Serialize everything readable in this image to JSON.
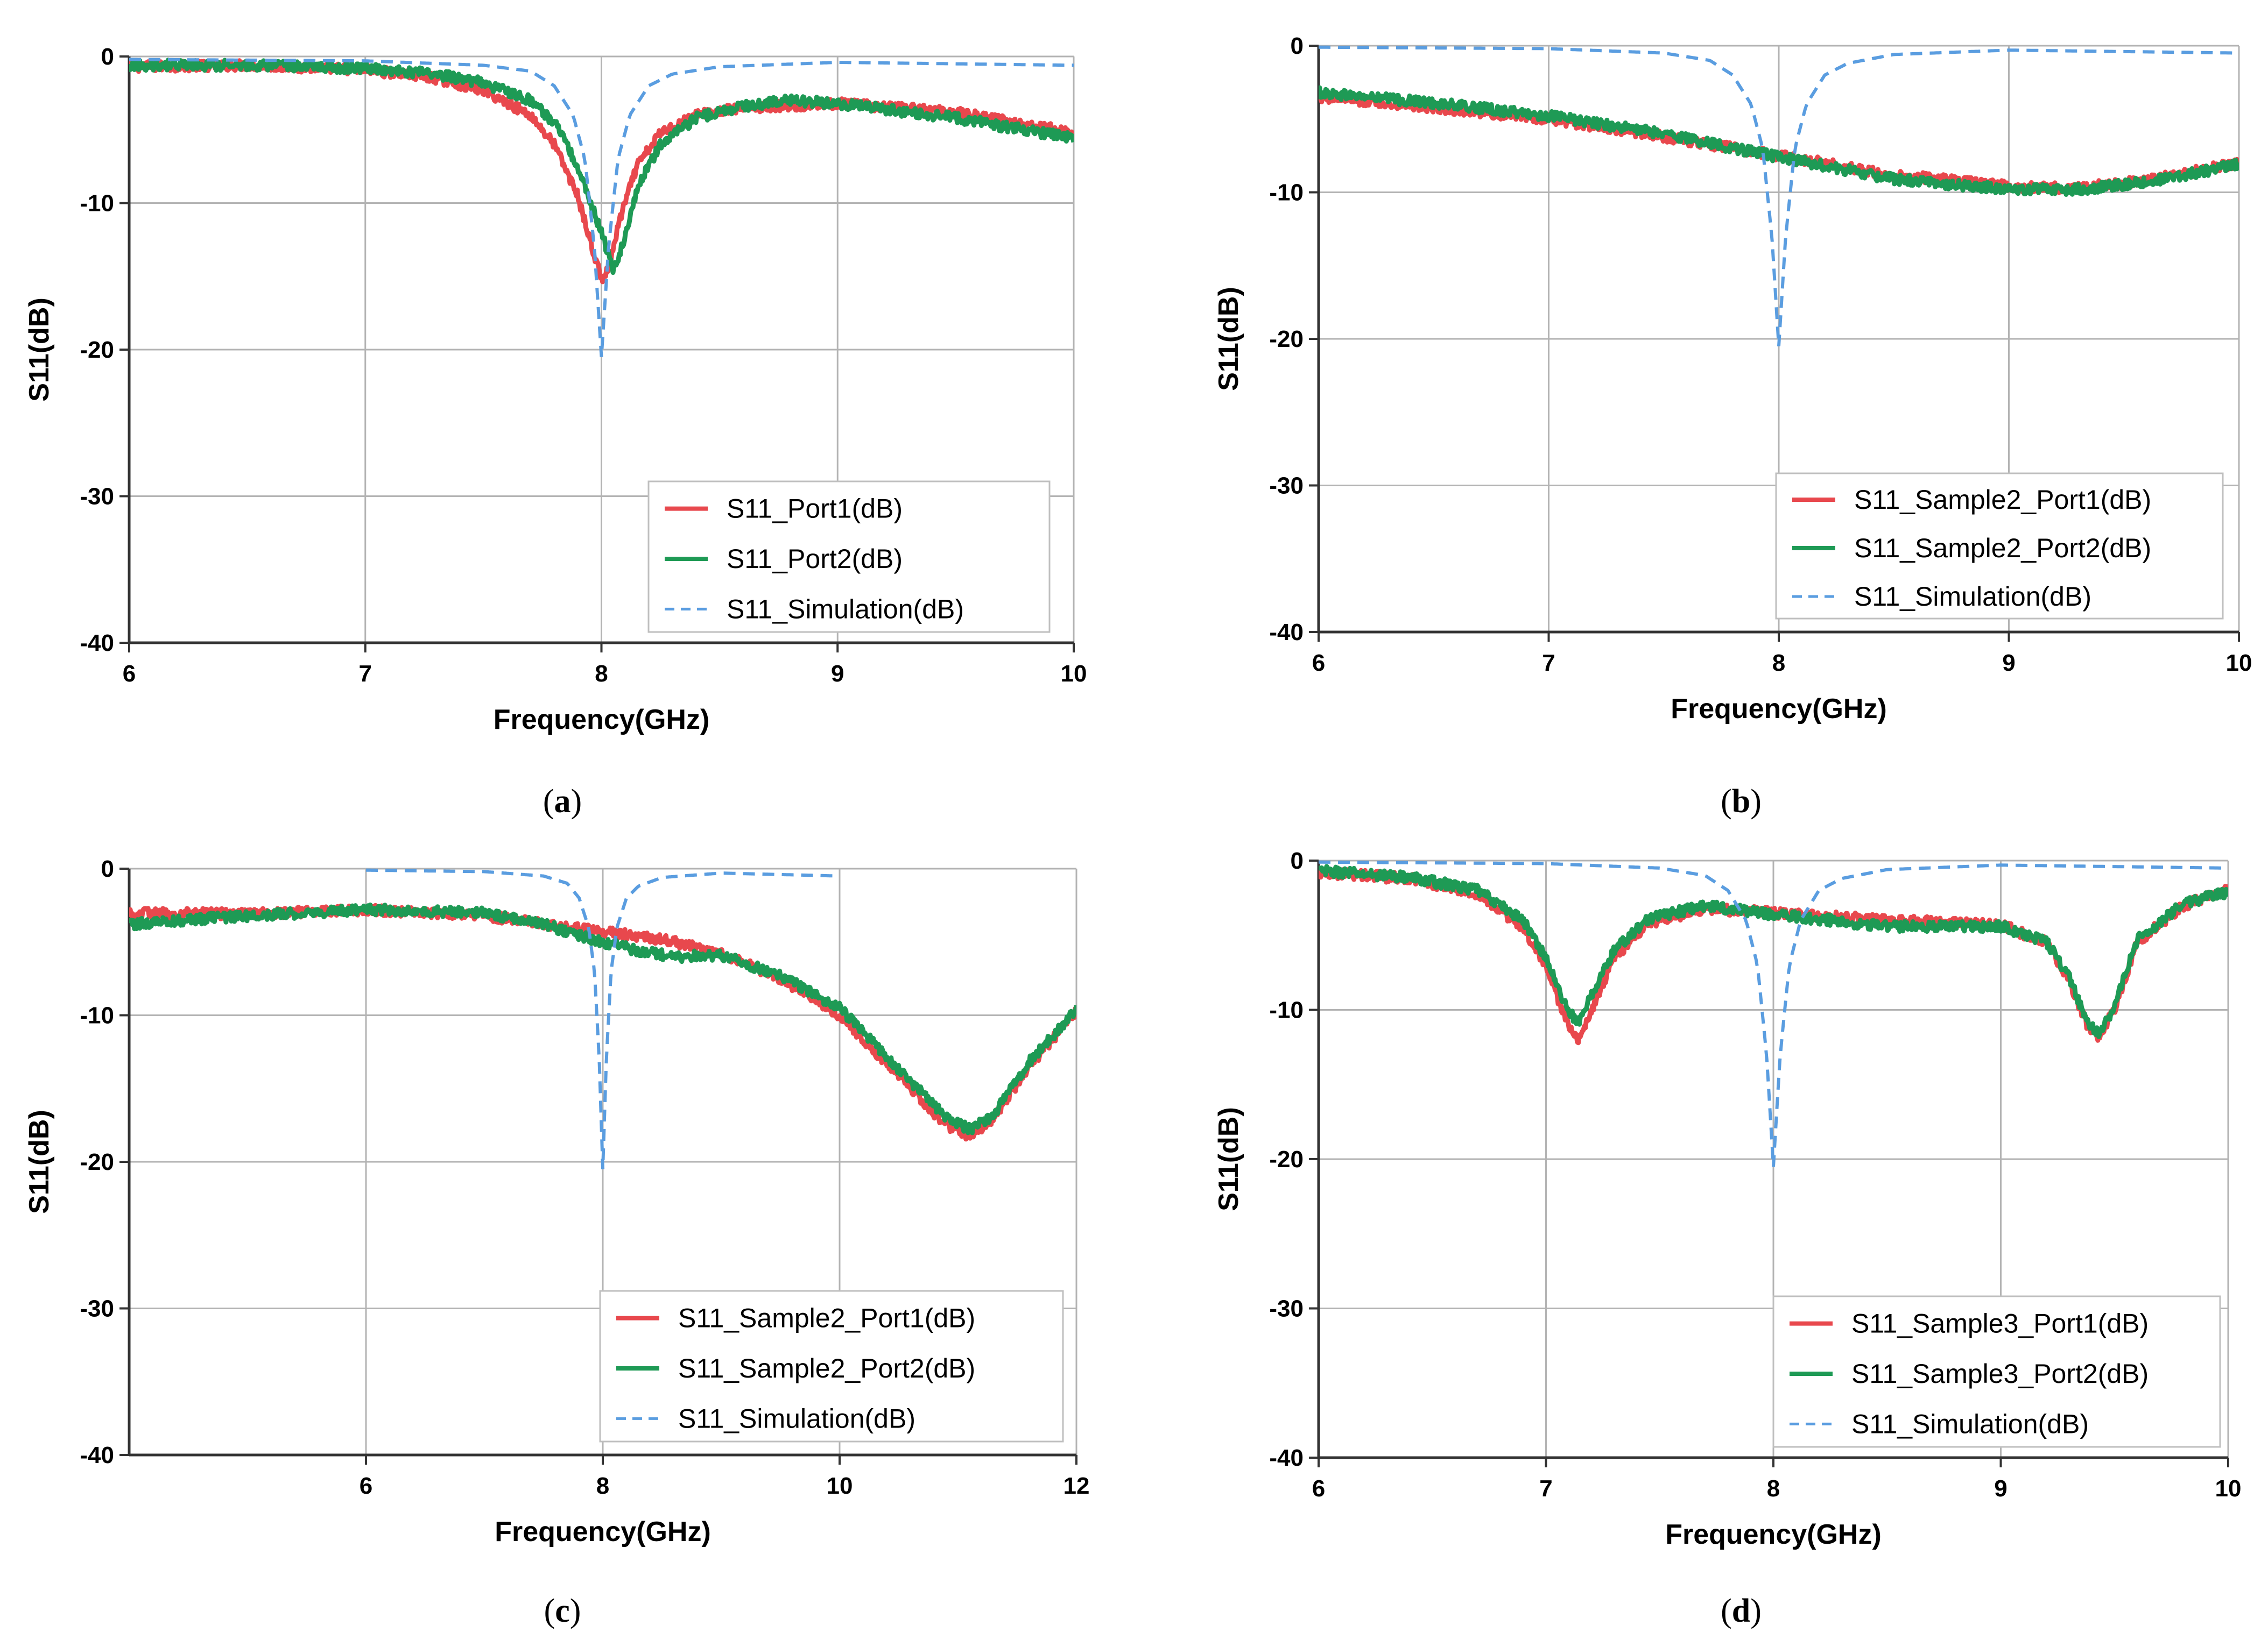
{
  "colors": {
    "port1": "#e8484d",
    "port2": "#1e9a55",
    "simulation": "#5a9de0",
    "grid": "#b3b3b3",
    "axis": "#333333",
    "legend_border": "#bfbfbf"
  },
  "chart_data": [
    {
      "id": "a",
      "type": "line",
      "panel_label": "a",
      "xlabel": "Frequency(GHz)",
      "ylabel": "S11(dB)",
      "xlim": [
        6,
        10
      ],
      "ylim": [
        -40,
        0
      ],
      "xticks": [
        6,
        7,
        8,
        9,
        10
      ],
      "yticks": [
        0,
        -10,
        -20,
        -30,
        -40
      ],
      "legend_position": "bottom-right",
      "series": [
        {
          "name": "S11_Port1(dB)",
          "role": "port1",
          "style": "solid",
          "x": [
            6,
            6.5,
            7,
            7.3,
            7.5,
            7.7,
            7.8,
            7.9,
            7.95,
            8.0,
            8.03,
            8.08,
            8.15,
            8.25,
            8.4,
            8.6,
            9,
            9.5,
            10
          ],
          "y": [
            -0.7,
            -0.6,
            -0.9,
            -1.5,
            -2.3,
            -4,
            -6,
            -9.5,
            -12.5,
            -15.2,
            -14.5,
            -11,
            -7.5,
            -5.2,
            -4,
            -3.5,
            -3.2,
            -3.8,
            -5.2
          ]
        },
        {
          "name": "S11_Port2(dB)",
          "role": "port2",
          "style": "solid",
          "x": [
            6,
            6.5,
            7,
            7.3,
            7.5,
            7.7,
            7.8,
            7.9,
            8.0,
            8.05,
            8.1,
            8.15,
            8.25,
            8.4,
            8.6,
            8.8,
            9,
            9.5,
            10
          ],
          "y": [
            -0.6,
            -0.6,
            -0.8,
            -1.2,
            -1.8,
            -3,
            -4.5,
            -7.5,
            -12,
            -14.5,
            -12.5,
            -9,
            -6,
            -4.2,
            -3.4,
            -3,
            -3.2,
            -4.2,
            -5.6
          ]
        },
        {
          "name": "S11_Simulation(dB)",
          "role": "simulation",
          "style": "dashed",
          "x": [
            6,
            7,
            7.5,
            7.7,
            7.8,
            7.88,
            7.93,
            7.97,
            8.0,
            8.03,
            8.07,
            8.12,
            8.2,
            8.3,
            8.5,
            9,
            10
          ],
          "y": [
            -0.2,
            -0.3,
            -0.6,
            -1,
            -2,
            -4,
            -7,
            -13,
            -20.5,
            -13,
            -7,
            -4,
            -2,
            -1.2,
            -0.7,
            -0.4,
            -0.6
          ]
        }
      ]
    },
    {
      "id": "b",
      "type": "line",
      "panel_label": "b",
      "xlabel": "Frequency(GHz)",
      "ylabel": "S11(dB)",
      "xlim": [
        6,
        10
      ],
      "ylim": [
        -40,
        0
      ],
      "xticks": [
        6,
        7,
        8,
        9,
        10
      ],
      "yticks": [
        0,
        -10,
        -20,
        -30,
        -40
      ],
      "legend_position": "bottom-right",
      "series": [
        {
          "name": "S11_Sample2_Port1(dB)",
          "role": "port1",
          "style": "solid",
          "x": [
            6,
            6.5,
            7,
            7.5,
            8,
            8.5,
            9,
            9.3,
            9.6,
            10
          ],
          "y": [
            -3.5,
            -4.2,
            -5,
            -6.2,
            -7.5,
            -8.8,
            -9.6,
            -9.7,
            -9.2,
            -8
          ]
        },
        {
          "name": "S11_Sample2_Port2(dB)",
          "role": "port2",
          "style": "solid",
          "x": [
            6,
            6.5,
            7,
            7.5,
            8,
            8.5,
            9,
            9.3,
            9.6,
            10
          ],
          "y": [
            -3.2,
            -3.9,
            -4.8,
            -6,
            -7.6,
            -9.1,
            -9.8,
            -9.8,
            -9.3,
            -8.1
          ]
        },
        {
          "name": "S11_Simulation(dB)",
          "role": "simulation",
          "style": "dashed",
          "x": [
            6,
            7,
            7.5,
            7.7,
            7.8,
            7.88,
            7.93,
            7.97,
            8.0,
            8.03,
            8.07,
            8.12,
            8.2,
            8.3,
            8.5,
            9,
            10
          ],
          "y": [
            -0.1,
            -0.2,
            -0.5,
            -1,
            -2,
            -4,
            -7,
            -13,
            -20.5,
            -13,
            -7,
            -4,
            -2,
            -1.2,
            -0.6,
            -0.3,
            -0.5
          ]
        }
      ]
    },
    {
      "id": "c",
      "type": "line",
      "panel_label": "c",
      "xlabel": "Frequency(GHz)",
      "ylabel": "S11(dB)",
      "xlim": [
        4,
        12
      ],
      "ylim": [
        -40,
        0
      ],
      "xticks": [
        6,
        8,
        10,
        12
      ],
      "yticks": [
        0,
        -10,
        -20,
        -30,
        -40
      ],
      "legend_position": "bottom-right",
      "series": [
        {
          "name": "S11_Sample2_Port1(dB)",
          "role": "port1",
          "style": "solid",
          "x": [
            4,
            5,
            6,
            7,
            7.5,
            8,
            8.5,
            9,
            9.5,
            10,
            10.3,
            10.6,
            10.9,
            11.1,
            11.3,
            11.6,
            12
          ],
          "y": [
            -3,
            -3.1,
            -2.8,
            -3.2,
            -3.8,
            -4.3,
            -4.8,
            -5.8,
            -7.5,
            -10,
            -12.5,
            -15,
            -17.5,
            -18.3,
            -17,
            -13.5,
            -9.8
          ]
        },
        {
          "name": "S11_Sample2_Port2(dB)",
          "role": "port2",
          "style": "solid",
          "x": [
            4,
            5,
            6,
            7,
            7.5,
            8,
            8.3,
            8.6,
            9,
            9.5,
            10,
            10.3,
            10.6,
            10.9,
            11.1,
            11.3,
            11.6,
            12
          ],
          "y": [
            -3.8,
            -3.2,
            -2.8,
            -3,
            -3.8,
            -5,
            -5.6,
            -6,
            -5.9,
            -7.3,
            -9.5,
            -12,
            -14.5,
            -17,
            -17.8,
            -16.8,
            -13.2,
            -9.6
          ]
        },
        {
          "name": "S11_Simulation(dB)",
          "role": "simulation",
          "style": "dashed",
          "x": [
            6,
            7,
            7.5,
            7.7,
            7.8,
            7.88,
            7.93,
            7.97,
            8.0,
            8.03,
            8.07,
            8.12,
            8.2,
            8.3,
            8.5,
            9,
            10
          ],
          "y": [
            -0.1,
            -0.2,
            -0.5,
            -1,
            -2,
            -4,
            -7,
            -13,
            -20.5,
            -13,
            -7,
            -4,
            -2,
            -1.2,
            -0.6,
            -0.3,
            -0.5
          ]
        }
      ]
    },
    {
      "id": "d",
      "type": "line",
      "panel_label": "d",
      "xlabel": "Frequency(GHz)",
      "ylabel": "S11(dB)",
      "xlim": [
        6,
        10
      ],
      "ylim": [
        -40,
        0
      ],
      "xticks": [
        6,
        7,
        8,
        9,
        10
      ],
      "yticks": [
        0,
        -10,
        -20,
        -30,
        -40
      ],
      "legend_position": "bottom-right",
      "series": [
        {
          "name": "S11_Sample3_Port1(dB)",
          "role": "port1",
          "style": "solid",
          "x": [
            6,
            6.4,
            6.7,
            6.9,
            7.0,
            7.07,
            7.12,
            7.15,
            7.2,
            7.3,
            7.45,
            7.7,
            8,
            8.5,
            9,
            9.2,
            9.3,
            9.38,
            9.43,
            9.5,
            9.6,
            9.8,
            10
          ],
          "y": [
            -0.8,
            -1.2,
            -2.2,
            -4.5,
            -7,
            -10,
            -11.8,
            -12,
            -10,
            -6.5,
            -4.2,
            -3.2,
            -3.5,
            -4,
            -4.3,
            -5.5,
            -8,
            -11,
            -11.8,
            -10,
            -5.5,
            -3,
            -2
          ]
        },
        {
          "name": "S11_Sample3_Port2(dB)",
          "role": "port2",
          "style": "solid",
          "x": [
            6,
            6.4,
            6.7,
            6.9,
            7.0,
            7.07,
            7.12,
            7.15,
            7.2,
            7.3,
            7.45,
            7.7,
            8,
            8.5,
            9,
            9.2,
            9.3,
            9.38,
            9.43,
            9.5,
            9.6,
            9.8,
            10
          ],
          "y": [
            -0.7,
            -1.1,
            -2,
            -4,
            -6.5,
            -9.2,
            -10.5,
            -10.8,
            -9,
            -6,
            -3.9,
            -3,
            -3.6,
            -4.4,
            -4.4,
            -5.4,
            -7.8,
            -10.8,
            -11.5,
            -9.8,
            -5.3,
            -2.9,
            -2.1
          ]
        },
        {
          "name": "S11_Simulation(dB)",
          "role": "simulation",
          "style": "dashed",
          "x": [
            6,
            7,
            7.5,
            7.7,
            7.8,
            7.88,
            7.93,
            7.97,
            8.0,
            8.03,
            8.07,
            8.12,
            8.2,
            8.3,
            8.5,
            9,
            10
          ],
          "y": [
            -0.1,
            -0.2,
            -0.5,
            -1,
            -2,
            -4,
            -7,
            -13,
            -20.5,
            -13,
            -7,
            -4,
            -2,
            -1.2,
            -0.6,
            -0.3,
            -0.5
          ]
        }
      ]
    }
  ]
}
